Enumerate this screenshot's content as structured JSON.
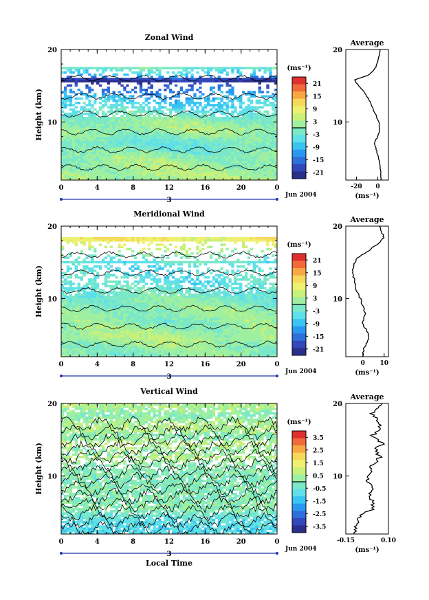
{
  "panels": [
    {
      "title": "Zonal Wind",
      "ylabel": "Height (km)",
      "yticks": [
        "20",
        "10"
      ],
      "xticks": [
        "0",
        "4",
        "8",
        "12",
        "16",
        "20",
        "0"
      ],
      "day_label": "3",
      "date_label": "Jun 2004",
      "cb_unit": "(ms⁻¹)",
      "cb_ticks": [
        "21",
        "15",
        "9",
        "3",
        "-3",
        "-9",
        "-15",
        "-21"
      ],
      "avg_title": "Average",
      "avg_yticks": [
        "20",
        "10"
      ],
      "avg_xticks": [
        "-20",
        "0"
      ],
      "avg_unit": "(ms⁻¹)"
    },
    {
      "title": "Meridional Wind",
      "ylabel": "Height (km)",
      "yticks": [
        "20",
        "10"
      ],
      "xticks": [
        "0",
        "4",
        "8",
        "12",
        "16",
        "20",
        "0"
      ],
      "day_label": "3",
      "date_label": "Jun 2004",
      "cb_unit": "(ms⁻¹)",
      "cb_ticks": [
        "21",
        "15",
        "9",
        "3",
        "-3",
        "-9",
        "-15",
        "-21"
      ],
      "avg_title": "Average",
      "avg_yticks": [
        "20",
        "10"
      ],
      "avg_xticks": [
        "0",
        "10"
      ],
      "avg_unit": "(ms⁻¹)"
    },
    {
      "title": "Vertical Wind",
      "ylabel": "Height (km)",
      "yticks": [
        "20",
        "10"
      ],
      "xticks": [
        "0",
        "4",
        "8",
        "12",
        "16",
        "20",
        "0"
      ],
      "day_label": "3",
      "date_label": "Jun 2004",
      "xlabel": "Local Time",
      "cb_unit": "(ms⁻¹)",
      "cb_ticks": [
        "3.5",
        "2.5",
        "1.5",
        "0.5",
        "-0.5",
        "-1.5",
        "-2.5",
        "-3.5"
      ],
      "avg_title": "Average",
      "avg_yticks": [
        "20",
        "10"
      ],
      "avg_xticks": [
        "-0.15",
        "0.10"
      ],
      "avg_unit": "(ms⁻¹)"
    }
  ],
  "colors": {
    "scale": [
      "#2a2f8c",
      "#3247b8",
      "#2f6fdc",
      "#2a97f0",
      "#3ac4f2",
      "#5fe0e8",
      "#7be8c8",
      "#9ef0a0",
      "#c8f07a",
      "#eef070",
      "#f6d85a",
      "#f7a845",
      "#f06a3a",
      "#e0302e"
    ]
  },
  "chart_data": [
    {
      "type": "heatmap",
      "title": "Zonal Wind",
      "ylabel": "Height (km)",
      "x_range_hours": [
        0,
        24
      ],
      "y_range_km": [
        2,
        20
      ],
      "colorbar_range": [
        -24,
        24
      ],
      "profile_wind_ms": [
        {
          "height": 19.5,
          "value": 2
        },
        {
          "height": 18.5,
          "value": 0
        },
        {
          "height": 17.5,
          "value": -2
        },
        {
          "height": 16.5,
          "value": -8
        },
        {
          "height": 15.8,
          "value": -22
        },
        {
          "height": 15,
          "value": -18
        },
        {
          "height": 14,
          "value": -12
        },
        {
          "height": 13,
          "value": -8
        },
        {
          "height": 12,
          "value": -5
        },
        {
          "height": 11,
          "value": -2
        },
        {
          "height": 10,
          "value": 1
        },
        {
          "height": 9,
          "value": 2
        },
        {
          "height": 8,
          "value": 0
        },
        {
          "height": 7.5,
          "value": -2
        },
        {
          "height": 7,
          "value": -3
        },
        {
          "height": 6,
          "value": -1
        },
        {
          "height": 5,
          "value": 1
        },
        {
          "height": 4,
          "value": 2
        },
        {
          "height": 3,
          "value": 3
        }
      ]
    },
    {
      "type": "heatmap",
      "title": "Meridional Wind",
      "ylabel": "Height (km)",
      "x_range_hours": [
        0,
        24
      ],
      "y_range_km": [
        2,
        20
      ],
      "colorbar_range": [
        -24,
        24
      ],
      "profile_wind_ms": [
        {
          "height": 19.5,
          "value": 8
        },
        {
          "height": 18.5,
          "value": 10
        },
        {
          "height": 17.5,
          "value": 7
        },
        {
          "height": 16.5,
          "value": 2
        },
        {
          "height": 15.5,
          "value": -3
        },
        {
          "height": 14,
          "value": -5
        },
        {
          "height": 12.5,
          "value": -4
        },
        {
          "height": 11,
          "value": -3
        },
        {
          "height": 10,
          "value": -1
        },
        {
          "height": 9,
          "value": 0
        },
        {
          "height": 8,
          "value": 1
        },
        {
          "height": 7,
          "value": 0
        },
        {
          "height": 6.5,
          "value": 0
        },
        {
          "height": 5.5,
          "value": 2
        },
        {
          "height": 4.5,
          "value": 3
        },
        {
          "height": 3.5,
          "value": 1
        },
        {
          "height": 2.5,
          "value": 0
        }
      ]
    },
    {
      "type": "heatmap",
      "title": "Vertical Wind",
      "xlabel": "Local Time",
      "ylabel": "Height (km)",
      "x_range_hours": [
        0,
        24
      ],
      "y_range_km": [
        2,
        20
      ],
      "colorbar_range": [
        -4,
        4
      ],
      "profile_wind_ms": [
        {
          "height": 19.5,
          "value": 0.05
        },
        {
          "height": 18.5,
          "value": 0.0
        },
        {
          "height": 17.5,
          "value": 0.04
        },
        {
          "height": 16.5,
          "value": 0.06
        },
        {
          "height": 15.5,
          "value": 0.0
        },
        {
          "height": 14.5,
          "value": 0.07
        },
        {
          "height": 13.5,
          "value": 0.02
        },
        {
          "height": 12.5,
          "value": 0.05
        },
        {
          "height": 11.5,
          "value": 0.0
        },
        {
          "height": 10.5,
          "value": -0.01
        },
        {
          "height": 9.5,
          "value": -0.02
        },
        {
          "height": 8.5,
          "value": 0.0
        },
        {
          "height": 7.5,
          "value": -0.01
        },
        {
          "height": 6.5,
          "value": 0.0
        },
        {
          "height": 5.5,
          "value": 0.01
        },
        {
          "height": 4.5,
          "value": -0.06
        },
        {
          "height": 3.5,
          "value": -0.09
        },
        {
          "height": 2.5,
          "value": -0.1
        }
      ]
    }
  ]
}
